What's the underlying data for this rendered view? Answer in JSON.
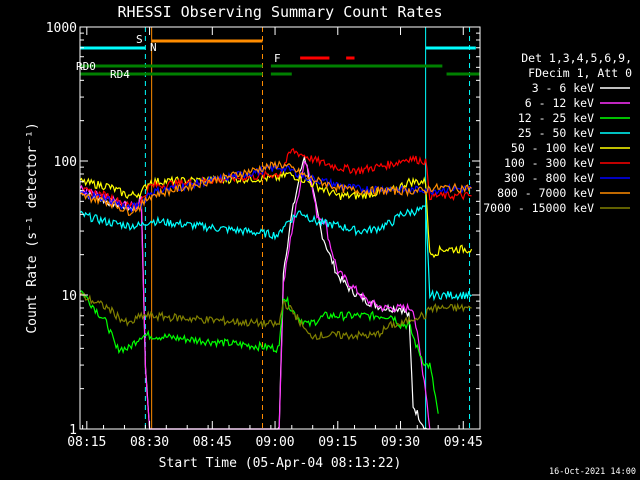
{
  "chart_data": {
    "type": "line",
    "title": "RHESSI Observing Summary Count Rates",
    "xlabel": "Start Time (05-Apr-04 08:13:22)",
    "ylabel": "Count Rate (s⁻¹ detector⁻¹)",
    "yscale": "log",
    "ylim": [
      1,
      1000
    ],
    "xlim_minutes_after_0800": [
      13.37,
      109
    ],
    "x_ticks": [
      {
        "label": "08:15",
        "min": 15
      },
      {
        "label": "08:30",
        "min": 30
      },
      {
        "label": "08:45",
        "min": 45
      },
      {
        "label": "09:00",
        "min": 60
      },
      {
        "label": "09:15",
        "min": 75
      },
      {
        "label": "09:30",
        "min": 90
      },
      {
        "label": "09:45",
        "min": 105
      }
    ],
    "y_ticks": [
      {
        "label": "1",
        "value": 1
      },
      {
        "label": "10",
        "value": 10
      },
      {
        "label": "100",
        "value": 100
      },
      {
        "label": "1000",
        "value": 1000
      }
    ],
    "legend_header": [
      "Det 1,3,4,5,6,9,",
      "FDecim 1, Att 0"
    ],
    "legend_position": "right",
    "series": [
      {
        "name": "3 - 6 keV",
        "color": "#ffffff",
        "points": [
          [
            13.4,
            60
          ],
          [
            20,
            50
          ],
          [
            25,
            45
          ],
          [
            27,
            45
          ],
          [
            28,
            55
          ],
          [
            29,
            3
          ],
          [
            30,
            1
          ],
          [
            61,
            1
          ],
          [
            62,
            15
          ],
          [
            64,
            40
          ],
          [
            66,
            80
          ],
          [
            67,
            110
          ],
          [
            69,
            60
          ],
          [
            71,
            30
          ],
          [
            73,
            20
          ],
          [
            75,
            14
          ],
          [
            78,
            11
          ],
          [
            82,
            9
          ],
          [
            86,
            8
          ],
          [
            90,
            8
          ],
          [
            92,
            7
          ],
          [
            93,
            1.5
          ],
          [
            96,
            1
          ],
          [
            97,
            1
          ]
        ]
      },
      {
        "name": "6 - 12 keV",
        "color": "#ff33ff",
        "points": [
          [
            13.4,
            62
          ],
          [
            20,
            52
          ],
          [
            25,
            46
          ],
          [
            27,
            46
          ],
          [
            28,
            55
          ],
          [
            29,
            3
          ],
          [
            30,
            1
          ],
          [
            61,
            1
          ],
          [
            62,
            12
          ],
          [
            64,
            30
          ],
          [
            67,
            100
          ],
          [
            68,
            90
          ],
          [
            70,
            40
          ],
          [
            72,
            35
          ],
          [
            73,
            25
          ],
          [
            75,
            15
          ],
          [
            78,
            12
          ],
          [
            82,
            9
          ],
          [
            86,
            8
          ],
          [
            90,
            8
          ],
          [
            93,
            8
          ],
          [
            94,
            5
          ],
          [
            96,
            2
          ],
          [
            97,
            1
          ]
        ]
      },
      {
        "name": "12 - 25 keV",
        "color": "#00ff00",
        "points": [
          [
            13.4,
            11
          ],
          [
            20,
            6
          ],
          [
            22,
            4
          ],
          [
            25,
            4
          ],
          [
            28,
            5
          ],
          [
            30,
            5
          ],
          [
            61,
            4
          ],
          [
            62,
            10
          ],
          [
            65,
            7
          ],
          [
            68,
            6
          ],
          [
            72,
            7
          ],
          [
            76,
            7
          ],
          [
            80,
            7
          ],
          [
            84,
            7
          ],
          [
            88,
            7
          ],
          [
            90,
            6
          ],
          [
            92,
            6
          ],
          [
            94,
            4
          ],
          [
            96,
            3
          ],
          [
            97,
            3
          ],
          [
            98,
            2
          ],
          [
            99,
            1.3
          ]
        ]
      },
      {
        "name": "25 - 50 keV",
        "color": "#00ffff",
        "points": [
          [
            13.4,
            40
          ],
          [
            20,
            35
          ],
          [
            25,
            33
          ],
          [
            28,
            33
          ],
          [
            30,
            36
          ],
          [
            61,
            28
          ],
          [
            62,
            33
          ],
          [
            66,
            42
          ],
          [
            70,
            35
          ],
          [
            75,
            33
          ],
          [
            80,
            30
          ],
          [
            84,
            31
          ],
          [
            88,
            35
          ],
          [
            90,
            40
          ],
          [
            93,
            42
          ],
          [
            96,
            44
          ],
          [
            97,
            10
          ],
          [
            100,
            10
          ],
          [
            104,
            10
          ],
          [
            107,
            10
          ]
        ]
      },
      {
        "name": "50 - 100 keV",
        "color": "#ffff00",
        "points": [
          [
            13.4,
            70
          ],
          [
            20,
            65
          ],
          [
            25,
            55
          ],
          [
            28,
            58
          ],
          [
            30,
            70
          ],
          [
            61,
            75
          ],
          [
            63,
            80
          ],
          [
            66,
            75
          ],
          [
            70,
            65
          ],
          [
            75,
            55
          ],
          [
            80,
            55
          ],
          [
            84,
            58
          ],
          [
            88,
            60
          ],
          [
            92,
            70
          ],
          [
            96,
            70
          ],
          [
            97,
            20
          ],
          [
            100,
            22
          ],
          [
            104,
            22
          ],
          [
            107,
            22
          ]
        ]
      },
      {
        "name": "100 - 300 keV",
        "color": "#ff0000",
        "points": [
          [
            13.4,
            60
          ],
          [
            20,
            55
          ],
          [
            25,
            46
          ],
          [
            28,
            50
          ],
          [
            30,
            65
          ],
          [
            61,
            80
          ],
          [
            64,
            120
          ],
          [
            67,
            110
          ],
          [
            70,
            100
          ],
          [
            75,
            90
          ],
          [
            80,
            85
          ],
          [
            84,
            90
          ],
          [
            88,
            95
          ],
          [
            92,
            105
          ],
          [
            96,
            100
          ],
          [
            97,
            55
          ],
          [
            100,
            55
          ],
          [
            104,
            55
          ],
          [
            107,
            55
          ]
        ]
      },
      {
        "name": "300 - 800 keV",
        "color": "#0000ff",
        "points": [
          [
            13.4,
            58
          ],
          [
            20,
            52
          ],
          [
            25,
            44
          ],
          [
            28,
            48
          ],
          [
            30,
            58
          ],
          [
            61,
            90
          ],
          [
            64,
            85
          ],
          [
            68,
            75
          ],
          [
            72,
            70
          ],
          [
            76,
            65
          ],
          [
            80,
            62
          ],
          [
            84,
            62
          ],
          [
            88,
            62
          ],
          [
            92,
            60
          ],
          [
            96,
            62
          ],
          [
            97,
            60
          ],
          [
            100,
            62
          ],
          [
            104,
            62
          ],
          [
            107,
            62
          ]
        ]
      },
      {
        "name": "800 - 7000 keV",
        "color": "#ff8c00",
        "points": [
          [
            13.4,
            55
          ],
          [
            20,
            50
          ],
          [
            25,
            42
          ],
          [
            28,
            46
          ],
          [
            30,
            55
          ],
          [
            61,
            95
          ],
          [
            64,
            88
          ],
          [
            68,
            75
          ],
          [
            72,
            68
          ],
          [
            76,
            62
          ],
          [
            80,
            60
          ],
          [
            84,
            60
          ],
          [
            88,
            60
          ],
          [
            92,
            60
          ],
          [
            96,
            60
          ],
          [
            97,
            63
          ],
          [
            100,
            63
          ],
          [
            104,
            63
          ],
          [
            107,
            63
          ]
        ]
      },
      {
        "name": "7000 - 15000 keV",
        "color": "#808000",
        "points": [
          [
            13.4,
            10
          ],
          [
            20,
            8
          ],
          [
            25,
            6
          ],
          [
            28,
            7
          ],
          [
            30,
            7
          ],
          [
            61,
            6
          ],
          [
            62,
            9
          ],
          [
            65,
            7
          ],
          [
            68,
            5
          ],
          [
            72,
            5
          ],
          [
            76,
            5
          ],
          [
            80,
            5
          ],
          [
            84,
            5
          ],
          [
            88,
            6
          ],
          [
            90,
            6
          ],
          [
            94,
            7
          ],
          [
            96,
            7
          ],
          [
            97,
            8
          ],
          [
            100,
            8
          ],
          [
            104,
            8
          ],
          [
            107,
            8
          ]
        ]
      }
    ],
    "annotations": [
      {
        "label": "S",
        "color": "#ff8c00"
      },
      {
        "label": "N",
        "color": "#00ffff"
      },
      {
        "label": "F",
        "color": "#ff0000"
      },
      {
        "label": "RD0",
        "color": "#008000"
      },
      {
        "label": "RD4",
        "color": "#008000"
      }
    ],
    "flag_bars": [
      {
        "name": "saa",
        "color": "#ff8c00",
        "segments": [
          [
            30.5,
            57
          ]
        ]
      },
      {
        "name": "night",
        "color": "#00ffff",
        "segments": [
          [
            13.4,
            29
          ],
          [
            96,
            108
          ]
        ]
      },
      {
        "name": "flare",
        "color": "#ff0000",
        "segments": [
          [
            66,
            73
          ],
          [
            77,
            79
          ]
        ]
      },
      {
        "name": "rd0",
        "color": "#008000",
        "segments": [
          [
            13.4,
            57
          ],
          [
            59,
            100
          ]
        ]
      },
      {
        "name": "rd4",
        "color": "#008000",
        "segments": [
          [
            13.4,
            57
          ],
          [
            59,
            64
          ],
          [
            101,
            109
          ]
        ]
      }
    ],
    "vlines": [
      {
        "min": 29,
        "color": "#00ffff",
        "style": "dashed"
      },
      {
        "min": 30.5,
        "color": "#ff8c00",
        "style": "solid"
      },
      {
        "min": 57,
        "color": "#ff8c00",
        "style": "dashed"
      },
      {
        "min": 96,
        "color": "#00ffff",
        "style": "solid"
      },
      {
        "min": 106.5,
        "color": "#00ffff",
        "style": "dashed"
      }
    ]
  },
  "timestamp": "16-Oct-2021 14:00"
}
